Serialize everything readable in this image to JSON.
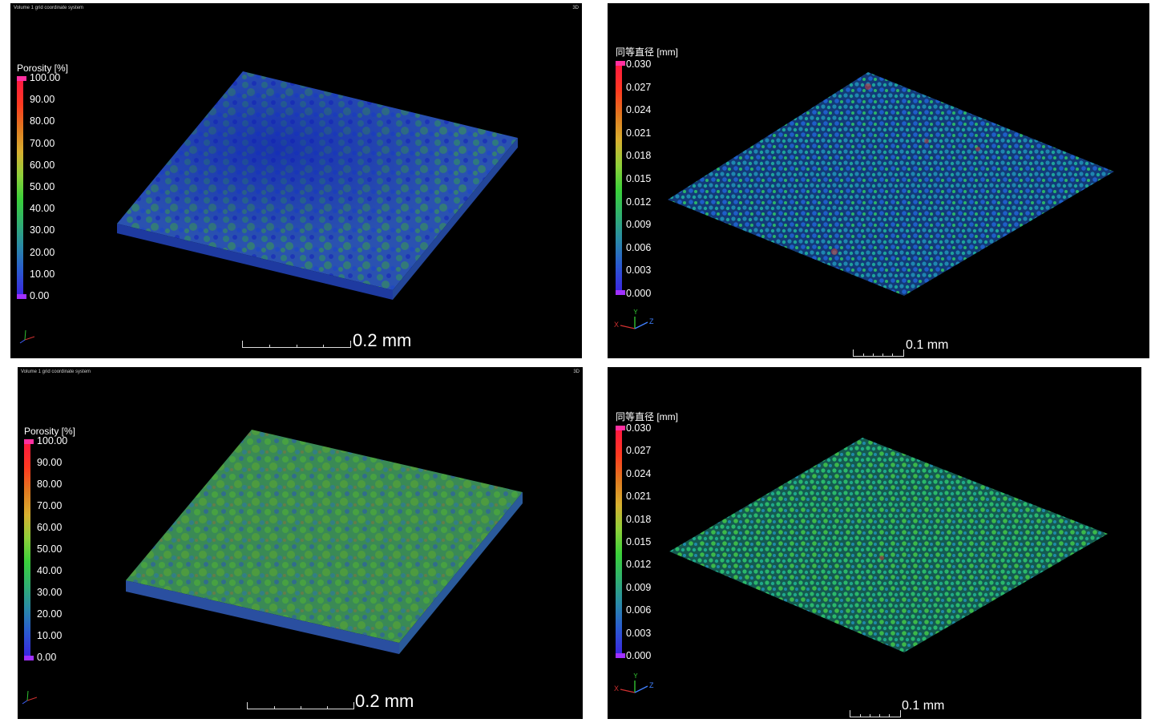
{
  "panels": [
    {
      "id": "tl",
      "header_left": "Volume 1 grid coordinate system",
      "header_right": "3D",
      "legend_title": "Porosity [%]",
      "ticks": [
        "100.00",
        "90.00",
        "80.00",
        "70.00",
        "60.00",
        "50.00",
        "40.00",
        "30.00",
        "20.00",
        "10.00",
        "0.00"
      ],
      "scale_label": "0.2 mm",
      "palette": [
        "#1a2fb8",
        "#1f49c4",
        "#2a6aa8",
        "#2f8a7a",
        "#3a9a4c"
      ],
      "axes_labels": [
        "x",
        "y",
        "z"
      ]
    },
    {
      "id": "tr",
      "legend_title": "同等直径 [mm]",
      "ticks": [
        "0.030",
        "0.027",
        "0.024",
        "0.021",
        "0.018",
        "0.015",
        "0.012",
        "0.009",
        "0.006",
        "0.003",
        "0.000"
      ],
      "scale_label": "0.1 mm",
      "palette": [
        "#1e5ec8",
        "#1f86b0",
        "#1ea39a",
        "#2ab36a",
        "#3fae3a"
      ],
      "axes_labels": [
        "X",
        "Y",
        "Z"
      ]
    },
    {
      "id": "bl",
      "header_left": "Volume 1 grid coordinate system",
      "header_right": "3D",
      "legend_title": "Porosity [%]",
      "ticks": [
        "100.00",
        "90.00",
        "80.00",
        "70.00",
        "60.00",
        "50.00",
        "40.00",
        "30.00",
        "20.00",
        "10.00",
        "0.00"
      ],
      "scale_label": "0.2 mm",
      "palette": [
        "#2a55b8",
        "#2f7a9a",
        "#3a9a55",
        "#4aa83a",
        "#5aa630"
      ],
      "axes_labels": [
        "x",
        "y",
        "z"
      ]
    },
    {
      "id": "br",
      "legend_title": "同等直径 [mm]",
      "ticks": [
        "0.030",
        "0.027",
        "0.024",
        "0.021",
        "0.018",
        "0.015",
        "0.012",
        "0.009",
        "0.006",
        "0.003",
        "0.000"
      ],
      "scale_label": "0.1 mm",
      "palette": [
        "#1e8aa8",
        "#1ea88a",
        "#2ab86a",
        "#3ab84a",
        "#48b23a"
      ],
      "axes_labels": [
        "X",
        "Y",
        "Z"
      ]
    }
  ],
  "colors": {
    "gradient": [
      "#ff1a40",
      "#ff3a20",
      "#e07a20",
      "#d8b030",
      "#8fd03a",
      "#3ad03a",
      "#30b070",
      "#2a8aa8",
      "#2a5ad0",
      "#3a28e0"
    ],
    "cap_top": "#ff30a0",
    "cap_bottom": "#a030ff"
  }
}
